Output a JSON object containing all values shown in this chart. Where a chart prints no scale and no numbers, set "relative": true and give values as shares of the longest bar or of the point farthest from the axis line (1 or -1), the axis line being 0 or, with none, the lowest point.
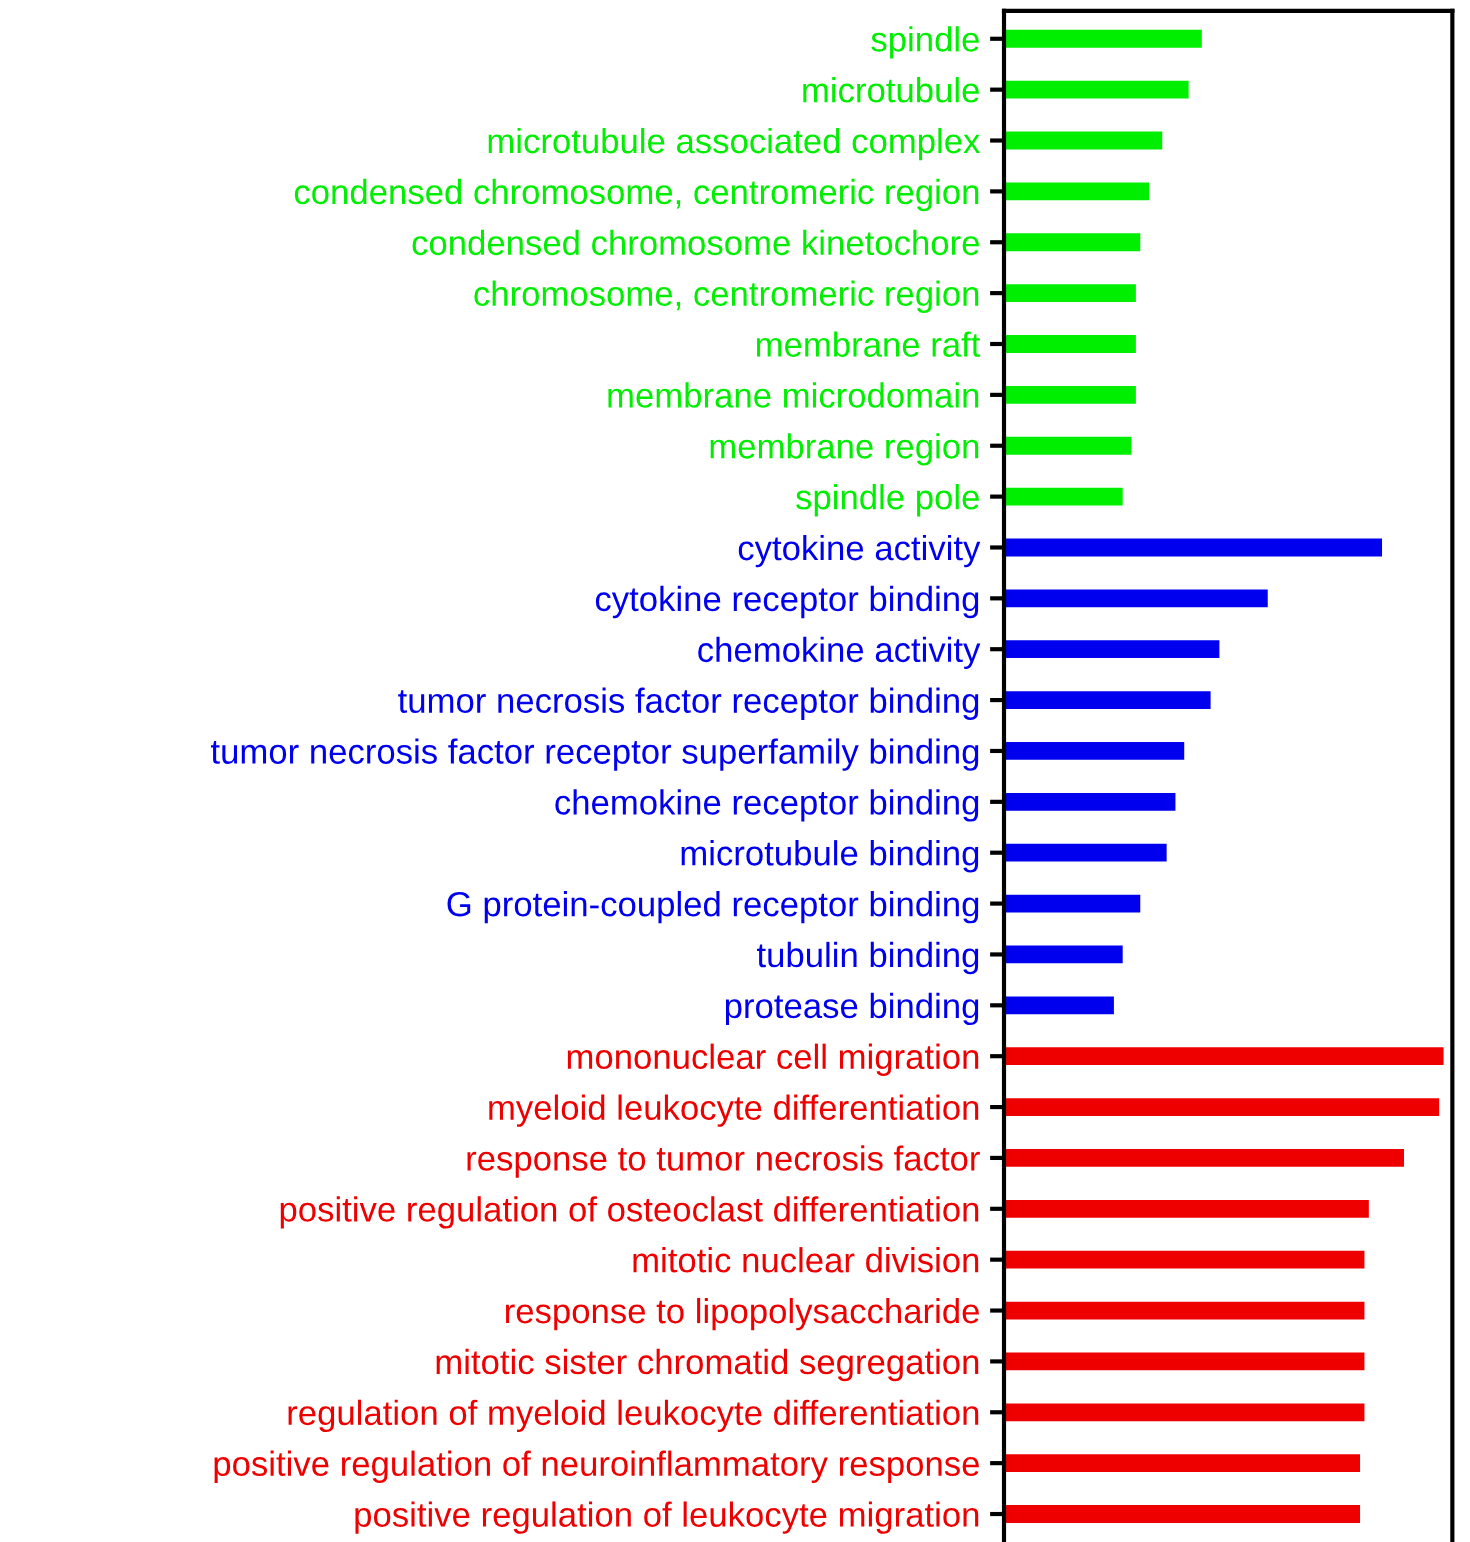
{
  "chart_data": {
    "type": "bar",
    "orientation": "horizontal",
    "relative": true,
    "grid": false,
    "categories": [
      "spindle",
      "microtubule",
      "microtubule associated complex",
      "condensed chromosome, centromeric region",
      "condensed chromosome kinetochore",
      "chromosome, centromeric region",
      "membrane raft",
      "membrane microdomain",
      "membrane region",
      "spindle pole",
      "cytokine activity",
      "cytokine receptor binding",
      "chemokine activity",
      "tumor necrosis factor receptor binding",
      "tumor necrosis factor receptor superfamily binding",
      "chemokine receptor binding",
      "microtubule binding",
      "G protein-coupled receptor binding",
      "tubulin binding",
      "protease binding",
      "mononuclear cell migration",
      "myeloid leukocyte differentiation",
      "response to tumor necrosis factor",
      "positive regulation of osteoclast differentiation",
      "mitotic nuclear division",
      "response to lipopolysaccharide",
      "mitotic sister chromatid segregation",
      "regulation of myeloid leukocyte differentiation",
      "positive regulation of neuroinflammatory response",
      "positive regulation of leukocyte migration"
    ],
    "values": [
      0.45,
      0.42,
      0.36,
      0.33,
      0.31,
      0.3,
      0.3,
      0.3,
      0.29,
      0.27,
      0.86,
      0.6,
      0.49,
      0.47,
      0.41,
      0.39,
      0.37,
      0.31,
      0.27,
      0.25,
      1.0,
      0.99,
      0.91,
      0.83,
      0.82,
      0.82,
      0.82,
      0.82,
      0.81,
      0.81
    ],
    "colors": [
      "#00ee00",
      "#00ee00",
      "#00ee00",
      "#00ee00",
      "#00ee00",
      "#00ee00",
      "#00ee00",
      "#00ee00",
      "#00ee00",
      "#00ee00",
      "#0000ee",
      "#0000ee",
      "#0000ee",
      "#0000ee",
      "#0000ee",
      "#0000ee",
      "#0000ee",
      "#0000ee",
      "#0000ee",
      "#0000ee",
      "#ee0000",
      "#ee0000",
      "#ee0000",
      "#ee0000",
      "#ee0000",
      "#ee0000",
      "#ee0000",
      "#ee0000",
      "#ee0000",
      "#ee0000"
    ]
  }
}
